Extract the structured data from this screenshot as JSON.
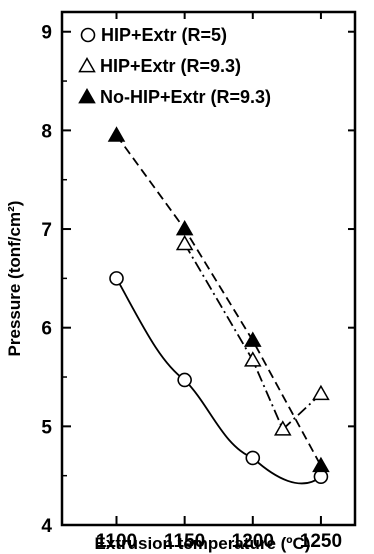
{
  "chart_data": {
    "type": "line",
    "title": "",
    "xlabel": "Extrusion temperature (ºC)",
    "ylabel": "Pressure (tonf/cm²)",
    "xlim": [
      1060,
      1275
    ],
    "ylim": [
      4,
      9.2
    ],
    "x_ticks": [
      1100,
      1150,
      1200,
      1250
    ],
    "y_ticks": [
      4,
      5,
      6,
      7,
      8,
      9
    ],
    "legend_position": "top",
    "series": [
      {
        "name": "HIP+Extr (R=5)",
        "marker": "open-circle",
        "line_style": "solid",
        "points": [
          {
            "x": 1100,
            "y": 6.5
          },
          {
            "x": 1150,
            "y": 5.47
          },
          {
            "x": 1200,
            "y": 4.68
          },
          {
            "x": 1250,
            "y": 4.49
          }
        ]
      },
      {
        "name": "HIP+Extr (R=9.3)",
        "marker": "open-triangle",
        "line_style": "dash-dot",
        "points": [
          {
            "x": 1150,
            "y": 6.85
          },
          {
            "x": 1200,
            "y": 5.67
          },
          {
            "x": 1222,
            "y": 4.97
          },
          {
            "x": 1250,
            "y": 5.33
          }
        ]
      },
      {
        "name": "No-HIP+Extr (R=9.3)",
        "marker": "filled-triangle",
        "line_style": "dashed",
        "points": [
          {
            "x": 1100,
            "y": 7.95
          },
          {
            "x": 1150,
            "y": 7.0
          },
          {
            "x": 1200,
            "y": 5.87
          },
          {
            "x": 1250,
            "y": 4.6
          }
        ]
      }
    ]
  }
}
